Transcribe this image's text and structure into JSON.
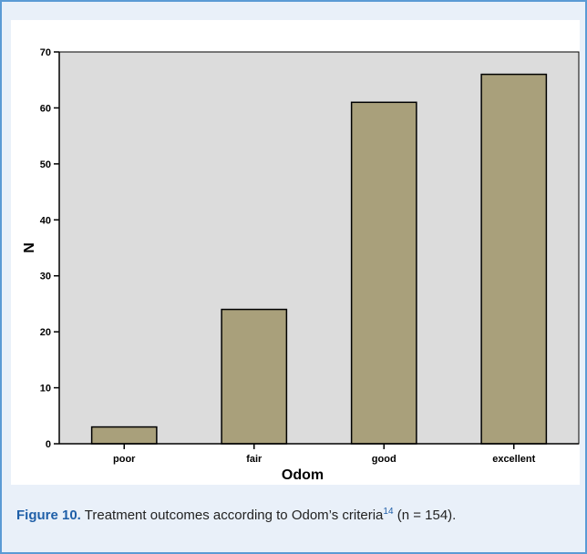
{
  "chart_data": {
    "type": "bar",
    "categories": [
      "poor",
      "fair",
      "good",
      "excellent"
    ],
    "values": [
      3,
      24,
      61,
      66
    ],
    "xlabel": "Odom",
    "ylabel": "N",
    "ylim": [
      0,
      70
    ],
    "yticks": [
      0,
      10,
      20,
      30,
      40,
      50,
      60,
      70
    ],
    "grid": false,
    "legend": "none",
    "colors": {
      "bar_fill": "#a9a07b",
      "plot_background": "#dcdcdc",
      "axis": "#000000"
    }
  },
  "caption": {
    "label": "Figure 10.",
    "text_before_ref": "Treatment outcomes according to Odom’s criteria",
    "ref": "14",
    "text_after_ref": " (n = 154)."
  },
  "colors": {
    "frame_border": "#5b9bd5",
    "frame_background": "#e9f0f9",
    "chart_background": "#ffffff"
  }
}
